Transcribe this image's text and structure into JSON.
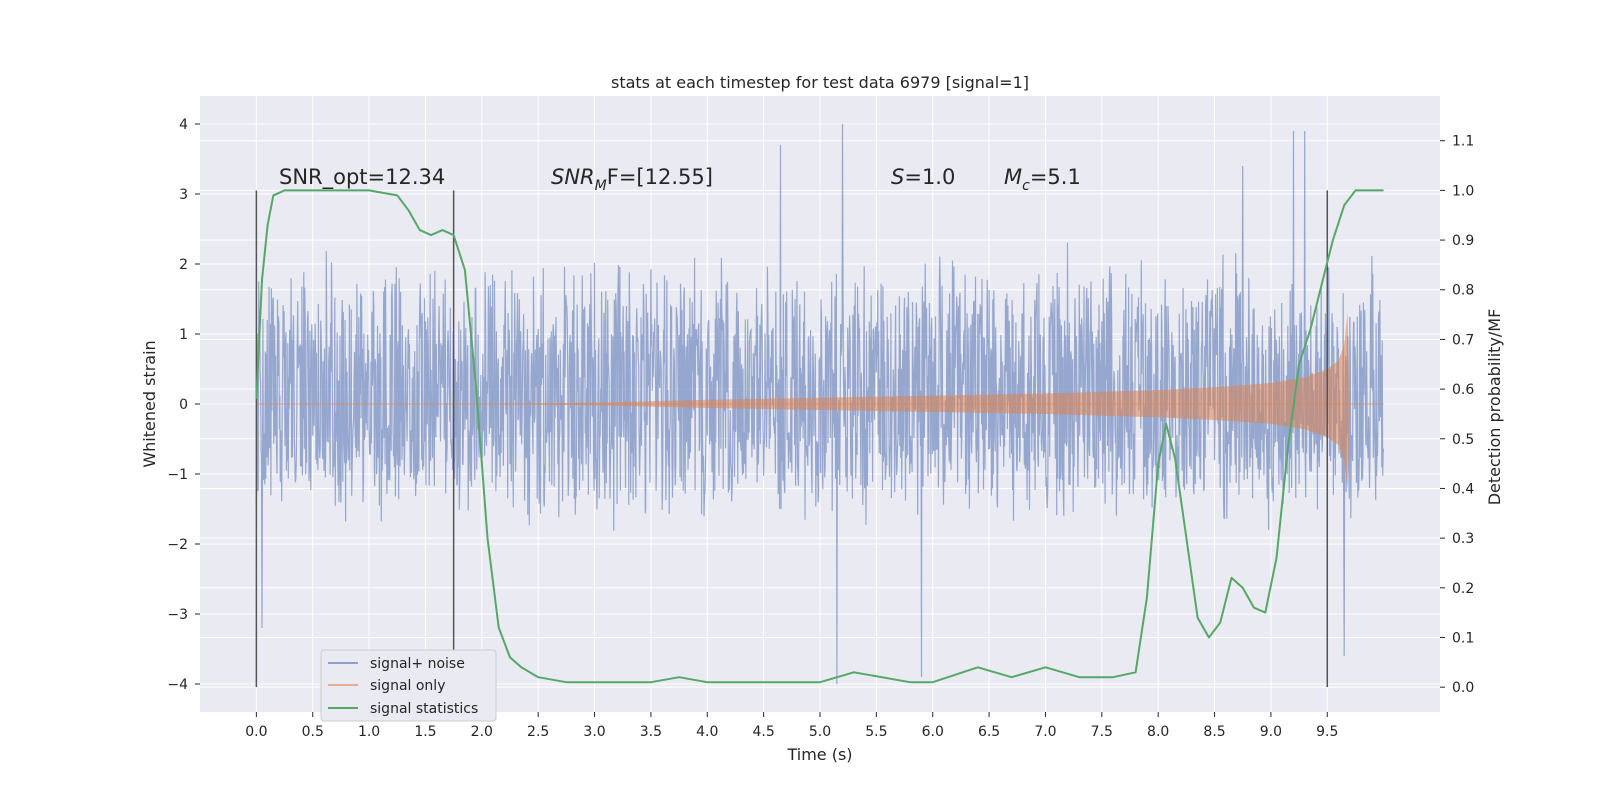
{
  "chart_data": {
    "type": "line",
    "title": "stats at each timestep for test data 6979 [signal=1]",
    "xlabel": "Time (s)",
    "ylabel": "Whitened strain",
    "ylabel_right": "Detection probability/MF",
    "xlim": [
      -0.5,
      10.5
    ],
    "ylim": [
      -4.4,
      4.4
    ],
    "ylim_right": [
      -0.05,
      1.19
    ],
    "x_ticks": [
      "0.0",
      "0.5",
      "1.0",
      "1.5",
      "2.0",
      "2.5",
      "3.0",
      "3.5",
      "4.0",
      "4.5",
      "5.0",
      "5.5",
      "6.0",
      "6.5",
      "7.0",
      "7.5",
      "8.0",
      "8.5",
      "9.0",
      "9.5"
    ],
    "y_ticks": [
      "4",
      "3",
      "2",
      "1",
      "0",
      "−1",
      "−2",
      "−3",
      "−4"
    ],
    "y_ticks_right": [
      "1.1",
      "1.0",
      "0.9",
      "0.8",
      "0.7",
      "0.6",
      "0.5",
      "0.4",
      "0.3",
      "0.2",
      "0.1",
      "0.0"
    ],
    "grid": true,
    "legend_position": "lower-left",
    "colors": {
      "signal_noise": "#8da0cb",
      "signal_only": "#dd8452",
      "statistics": "#55a868",
      "background": "#eaeaf2"
    },
    "series": [
      {
        "name": "signal+ noise",
        "x_range": [
          0.0,
          10.0
        ],
        "envelope_typical": [
          -1.9,
          2.4
        ],
        "peaks": [
          {
            "x": 5.2,
            "y": 4.0
          },
          {
            "x": 9.2,
            "y": 3.9
          },
          {
            "x": 9.3,
            "y": 3.9
          },
          {
            "x": 4.65,
            "y": 3.7
          },
          {
            "x": 8.75,
            "y": 3.4
          },
          {
            "x": 5.15,
            "y": -4.0
          },
          {
            "x": 5.9,
            "y": -3.9
          },
          {
            "x": 9.65,
            "y": -3.6
          },
          {
            "x": 0.05,
            "y": -3.2
          }
        ]
      },
      {
        "name": "signal only",
        "x": [
          0.0,
          2.0,
          3.0,
          4.0,
          5.0,
          6.0,
          7.0,
          8.0,
          8.5,
          9.0,
          9.3,
          9.5,
          9.6,
          9.65,
          9.68,
          9.7
        ],
        "amplitude": [
          0.0,
          0.0,
          0.02,
          0.06,
          0.09,
          0.12,
          0.15,
          0.2,
          0.24,
          0.3,
          0.38,
          0.5,
          0.62,
          0.85,
          1.3,
          0.0
        ]
      },
      {
        "name": "signal statistics",
        "x": [
          0.0,
          0.05,
          0.1,
          0.15,
          0.25,
          0.5,
          1.0,
          1.25,
          1.35,
          1.45,
          1.55,
          1.65,
          1.75,
          1.85,
          1.95,
          2.05,
          2.15,
          2.25,
          2.35,
          2.5,
          2.75,
          3.0,
          3.5,
          3.75,
          4.0,
          4.5,
          5.0,
          5.3,
          5.8,
          6.0,
          6.4,
          6.7,
          7.0,
          7.3,
          7.6,
          7.8,
          7.9,
          8.0,
          8.07,
          8.15,
          8.25,
          8.35,
          8.45,
          8.55,
          8.65,
          8.75,
          8.85,
          8.95,
          9.05,
          9.15,
          9.25,
          9.35,
          9.45,
          9.55,
          9.65,
          9.75,
          10.0
        ],
        "y": [
          0.58,
          0.82,
          0.93,
          0.99,
          1.0,
          1.0,
          1.0,
          0.99,
          0.96,
          0.92,
          0.91,
          0.92,
          0.91,
          0.84,
          0.6,
          0.3,
          0.12,
          0.06,
          0.04,
          0.02,
          0.01,
          0.01,
          0.01,
          0.02,
          0.01,
          0.01,
          0.01,
          0.03,
          0.01,
          0.01,
          0.04,
          0.02,
          0.04,
          0.02,
          0.02,
          0.03,
          0.18,
          0.45,
          0.53,
          0.46,
          0.3,
          0.14,
          0.1,
          0.13,
          0.22,
          0.2,
          0.16,
          0.15,
          0.26,
          0.48,
          0.65,
          0.72,
          0.81,
          0.9,
          0.97,
          1.0,
          1.0
        ]
      }
    ],
    "vlines_x": [
      0.0,
      1.75,
      9.5
    ],
    "annotations": {
      "snr_opt": "SNR_opt=12.34",
      "snr_mf_var": "SNR",
      "snr_mf_sub": "M",
      "snr_mf_rest": "F=[12.55]",
      "s_var": "S",
      "s_rest": "=1.0",
      "mc_var": "M",
      "mc_sub": "c",
      "mc_rest": "=5.1"
    }
  }
}
